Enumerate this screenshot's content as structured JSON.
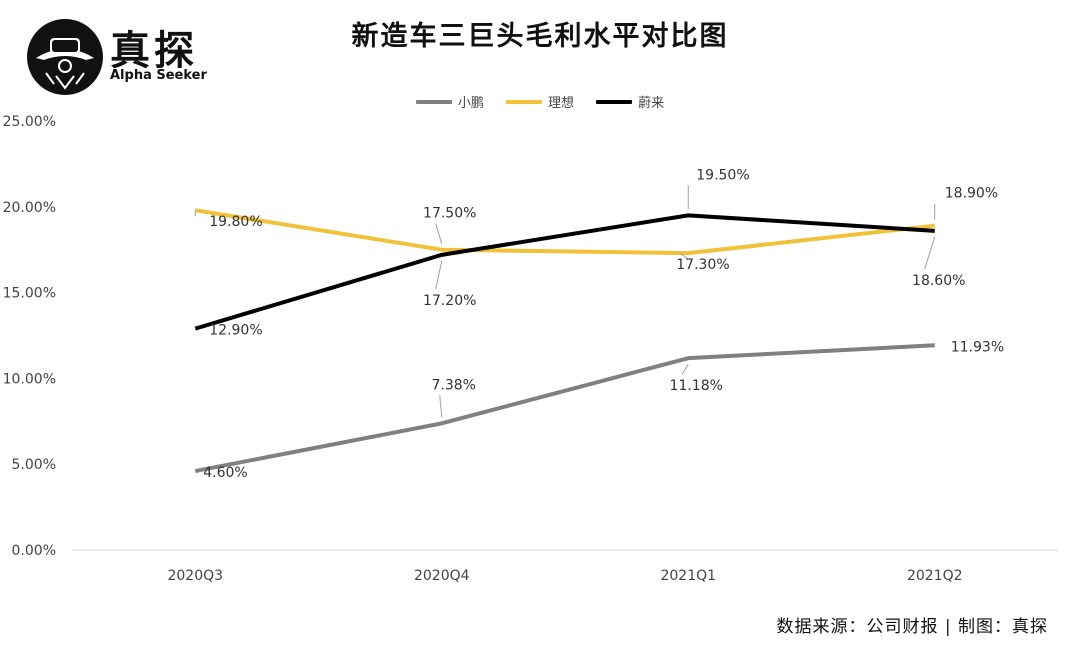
{
  "brand": {
    "name_cn": "真探",
    "name_en": "Alpha Seeker",
    "logo_icon": "detective-hat-icon"
  },
  "source_note": "数据来源：公司财报 | 制图：真探",
  "chart_data": {
    "type": "line",
    "title": "新造车三巨头毛利水平对比图",
    "xlabel": "",
    "ylabel": "",
    "categories": [
      "2020Q3",
      "2020Q4",
      "2021Q1",
      "2021Q2"
    ],
    "ylim": [
      0,
      25
    ],
    "yticks": [
      "0.00%",
      "5.00%",
      "10.00%",
      "15.00%",
      "20.00%",
      "25.00%"
    ],
    "grid": false,
    "legend_position": "top-center",
    "series": [
      {
        "name": "小鹏",
        "color": "#808080",
        "values": [
          4.6,
          7.38,
          11.18,
          11.93
        ],
        "labels": [
          "4.60%",
          "7.38%",
          "11.18%",
          "11.93%"
        ]
      },
      {
        "name": "理想",
        "color": "#f2c13a",
        "values": [
          19.8,
          17.5,
          17.3,
          18.9
        ],
        "labels": [
          "19.80%",
          "17.50%",
          "17.30%",
          "18.90%"
        ]
      },
      {
        "name": "蔚来",
        "color": "#000000",
        "values": [
          12.9,
          17.2,
          19.5,
          18.6
        ],
        "labels": [
          "12.90%",
          "17.20%",
          "19.50%",
          "18.60%"
        ]
      }
    ]
  }
}
